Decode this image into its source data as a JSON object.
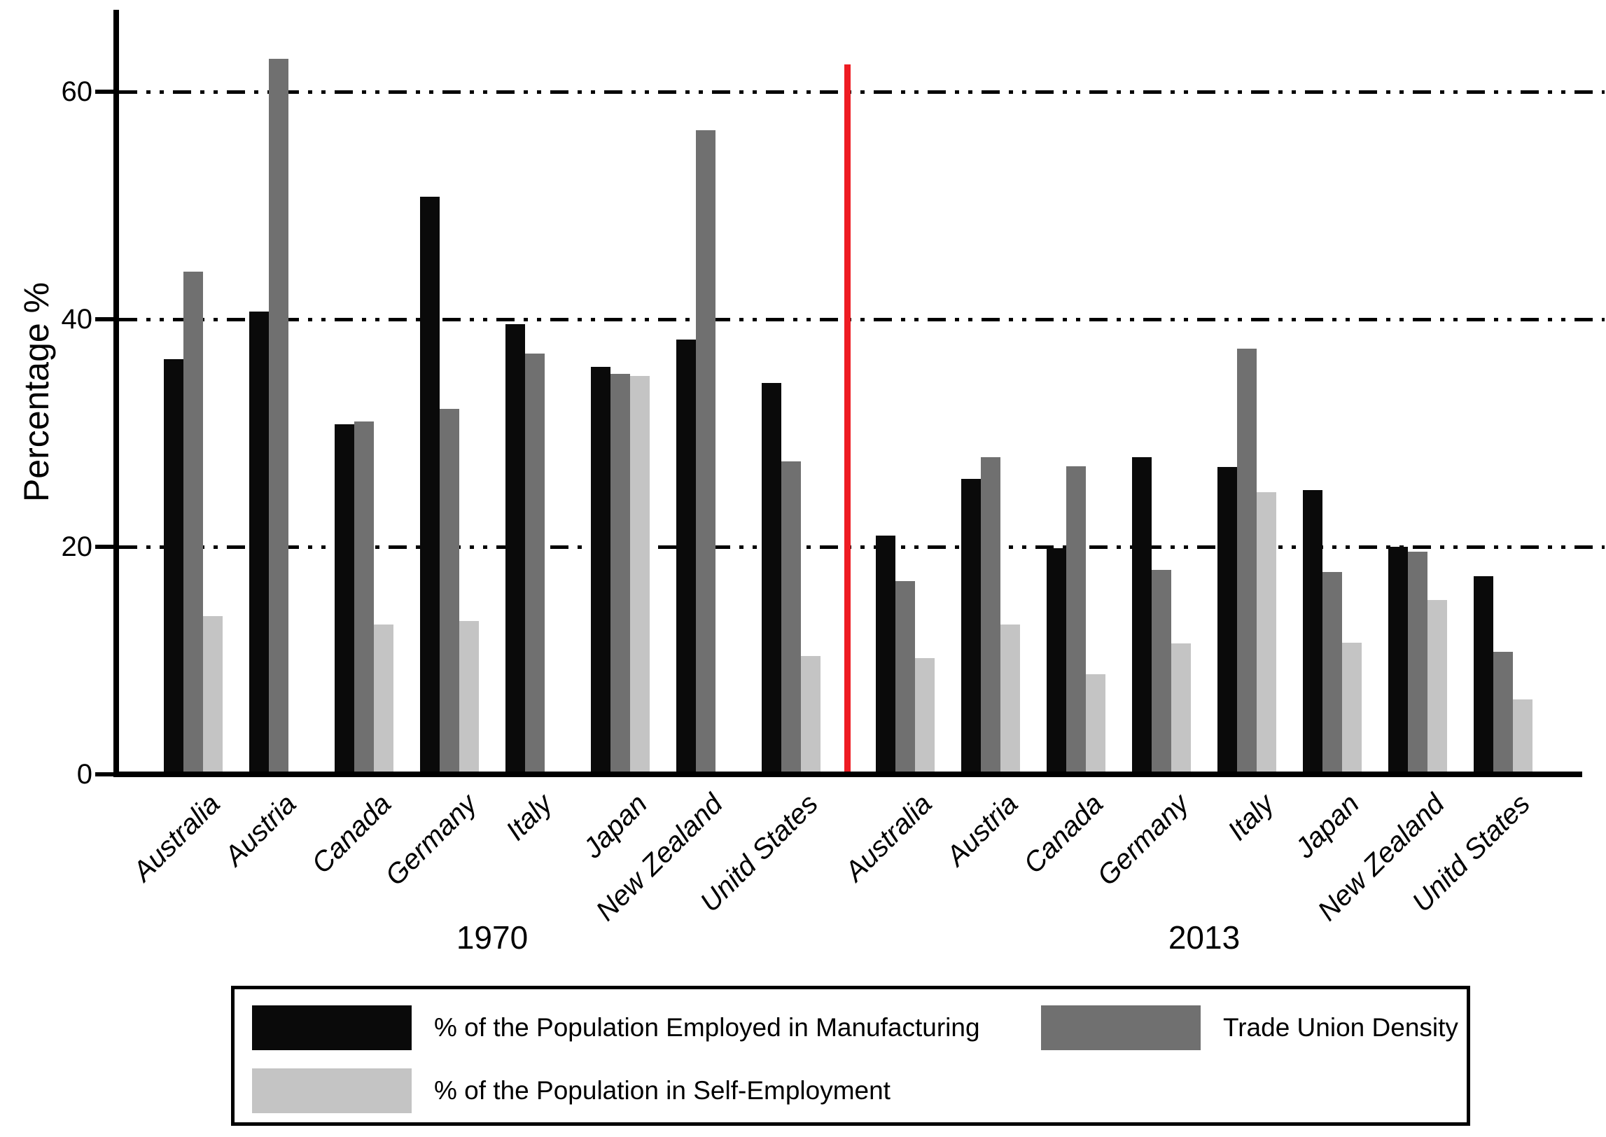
{
  "chart_data": {
    "type": "bar",
    "title": "",
    "ylabel": "Percentage %",
    "xlabel": "",
    "ylim": [
      0,
      66
    ],
    "yticks": [
      0,
      20,
      40,
      60
    ],
    "gridline_values": [
      20,
      40,
      60
    ],
    "grid_style": "dash-dot-dot horizontal",
    "legend_position": "bottom-box",
    "divider_color": "#ee1c23",
    "series": [
      {
        "name": "% of the Population Employed in Manufacturing",
        "color": "#0a0a0a"
      },
      {
        "name": "Trade Union Density",
        "color": "#707070"
      },
      {
        "name": "% of the Population in Self-Employment",
        "color": "#c4c4c4"
      }
    ],
    "groups": [
      {
        "label": "1970",
        "countries": [
          {
            "name": "Australia",
            "values": [
              36.5,
              44.2,
              13.9
            ]
          },
          {
            "name": "Austria",
            "values": [
              40.7,
              62.9,
              null
            ]
          },
          {
            "name": "Canada",
            "values": [
              30.8,
              31.0,
              13.2
            ]
          },
          {
            "name": "Germany",
            "values": [
              50.8,
              32.1,
              13.5
            ]
          },
          {
            "name": "Italy",
            "values": [
              39.6,
              37.0,
              null
            ]
          },
          {
            "name": "Japan",
            "values": [
              35.8,
              35.2,
              35.0
            ]
          },
          {
            "name": "New Zealand",
            "values": [
              38.2,
              56.6,
              null
            ]
          },
          {
            "name": "Unitd States",
            "values": [
              34.4,
              27.5,
              10.4
            ]
          }
        ]
      },
      {
        "label": "2013",
        "countries": [
          {
            "name": "Australia",
            "values": [
              21.0,
              17.0,
              10.2
            ]
          },
          {
            "name": "Austria",
            "values": [
              26.0,
              27.9,
              13.2
            ]
          },
          {
            "name": "Canada",
            "values": [
              19.9,
              27.1,
              8.8
            ]
          },
          {
            "name": "Germany",
            "values": [
              27.9,
              18.0,
              11.5
            ]
          },
          {
            "name": "Italy",
            "values": [
              27.0,
              37.4,
              24.8
            ]
          },
          {
            "name": "Japan",
            "values": [
              25.0,
              17.8,
              11.6
            ]
          },
          {
            "name": "New Zealand",
            "values": [
              20.0,
              19.6,
              15.3
            ]
          },
          {
            "name": "Unitd States",
            "values": [
              17.4,
              10.8,
              6.6
            ]
          }
        ]
      }
    ],
    "legend": {
      "items": [
        {
          "label": "% of the Population Employed in Manufacturing",
          "color": "#0a0a0a"
        },
        {
          "label": "% of the Population in Self-Employment",
          "color": "#c4c4c4"
        },
        {
          "label": "Trade Union Density",
          "color": "#707070"
        }
      ]
    }
  }
}
